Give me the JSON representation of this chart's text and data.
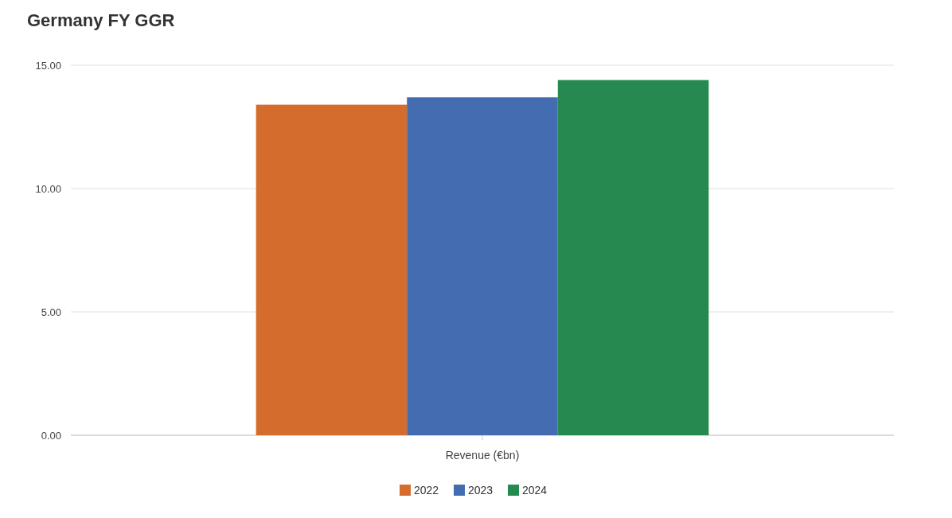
{
  "chart_data": {
    "type": "bar",
    "title": "Germany FY GGR",
    "categories": [
      "Revenue (€bn)"
    ],
    "series": [
      {
        "name": "2022",
        "color": "#d46c2d",
        "values": [
          13.4
        ]
      },
      {
        "name": "2023",
        "color": "#446cb0",
        "values": [
          13.7
        ]
      },
      {
        "name": "2024",
        "color": "#268a50",
        "values": [
          14.4
        ]
      }
    ],
    "ylim": [
      0,
      15
    ],
    "yticks": [
      {
        "value": 0,
        "label": "0.00"
      },
      {
        "value": 5,
        "label": "5.00"
      },
      {
        "value": 10,
        "label": "10.00"
      },
      {
        "value": 15,
        "label": "15.00"
      }
    ],
    "grid": "y",
    "legend": "bottom"
  }
}
